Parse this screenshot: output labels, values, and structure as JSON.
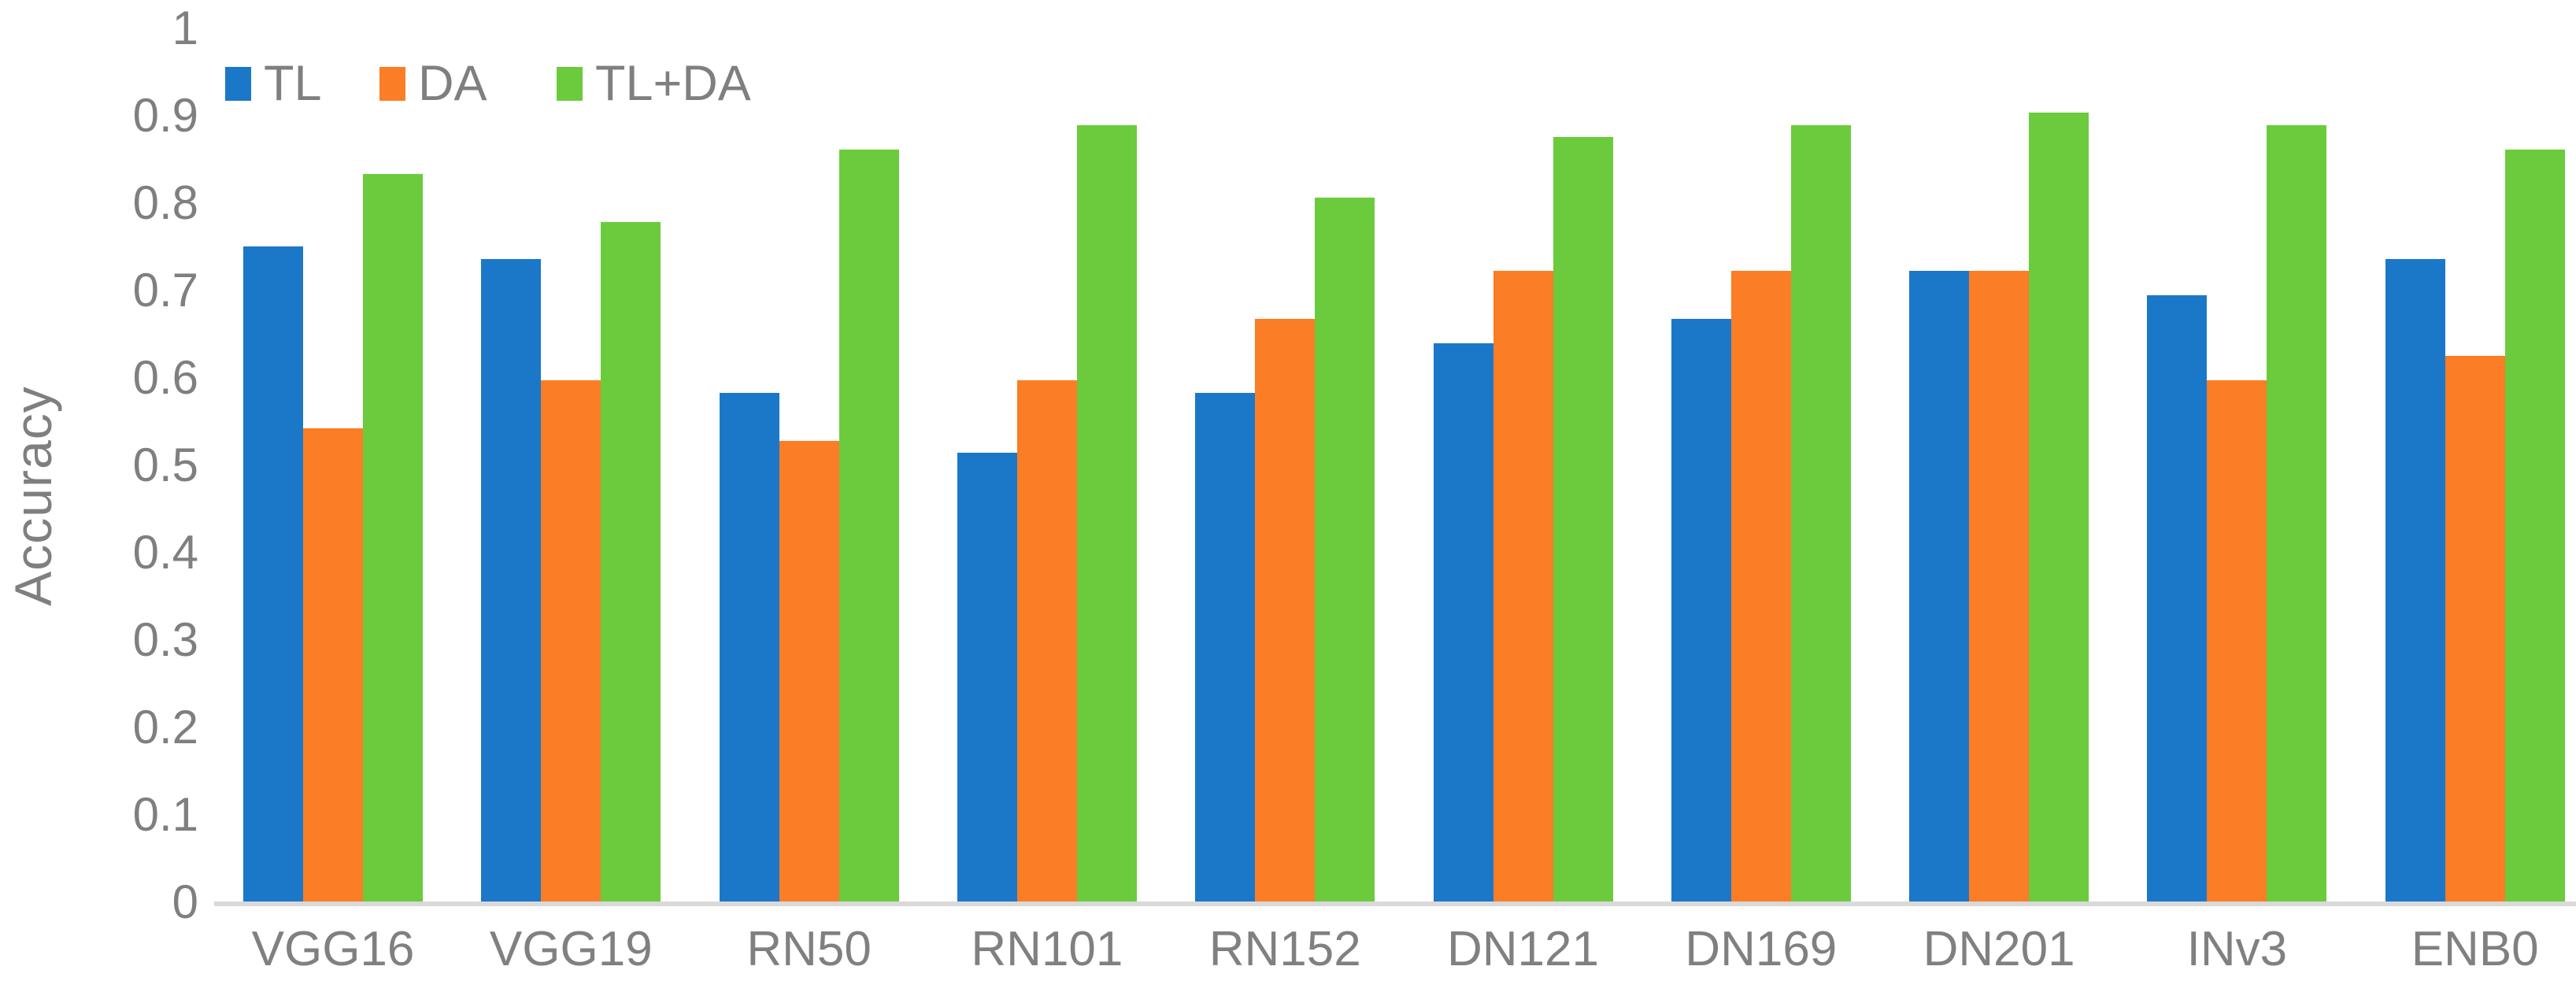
{
  "chart_data": {
    "type": "bar",
    "title": "",
    "ylabel": "Accuracy",
    "xlabel": "",
    "categories": [
      "VGG16",
      "VGG19",
      "RN50",
      "RN101",
      "RN152",
      "DN121",
      "DN169",
      "DN201",
      "INv3",
      "ENB0"
    ],
    "series": [
      {
        "name": "TL",
        "color_key": "blue",
        "values": [
          0.75,
          0.736,
          0.583,
          0.514,
          0.583,
          0.639,
          0.667,
          0.722,
          0.694,
          0.736
        ]
      },
      {
        "name": "DA",
        "color_key": "orange",
        "values": [
          0.542,
          0.597,
          0.528,
          0.597,
          0.667,
          0.722,
          0.722,
          0.722,
          0.597,
          0.625
        ]
      },
      {
        "name": "TL+DA",
        "color_key": "green",
        "values": [
          0.833,
          0.778,
          0.861,
          0.889,
          0.806,
          0.875,
          0.889,
          0.903,
          0.889,
          0.861
        ]
      }
    ],
    "y_ticks": [
      "0",
      "0.1",
      "0.2",
      "0.3",
      "0.4",
      "0.5",
      "0.6",
      "0.7",
      "0.8",
      "0.9",
      "1"
    ],
    "ylim": [
      0,
      1
    ],
    "grid": false,
    "legend_position": "top-left",
    "colors": {
      "blue": "#1B78C9",
      "orange": "#FB7D25",
      "green": "#6BCB3C"
    },
    "text_color": "#7F7F7F",
    "axis_line_color": "#D9D9D9"
  }
}
